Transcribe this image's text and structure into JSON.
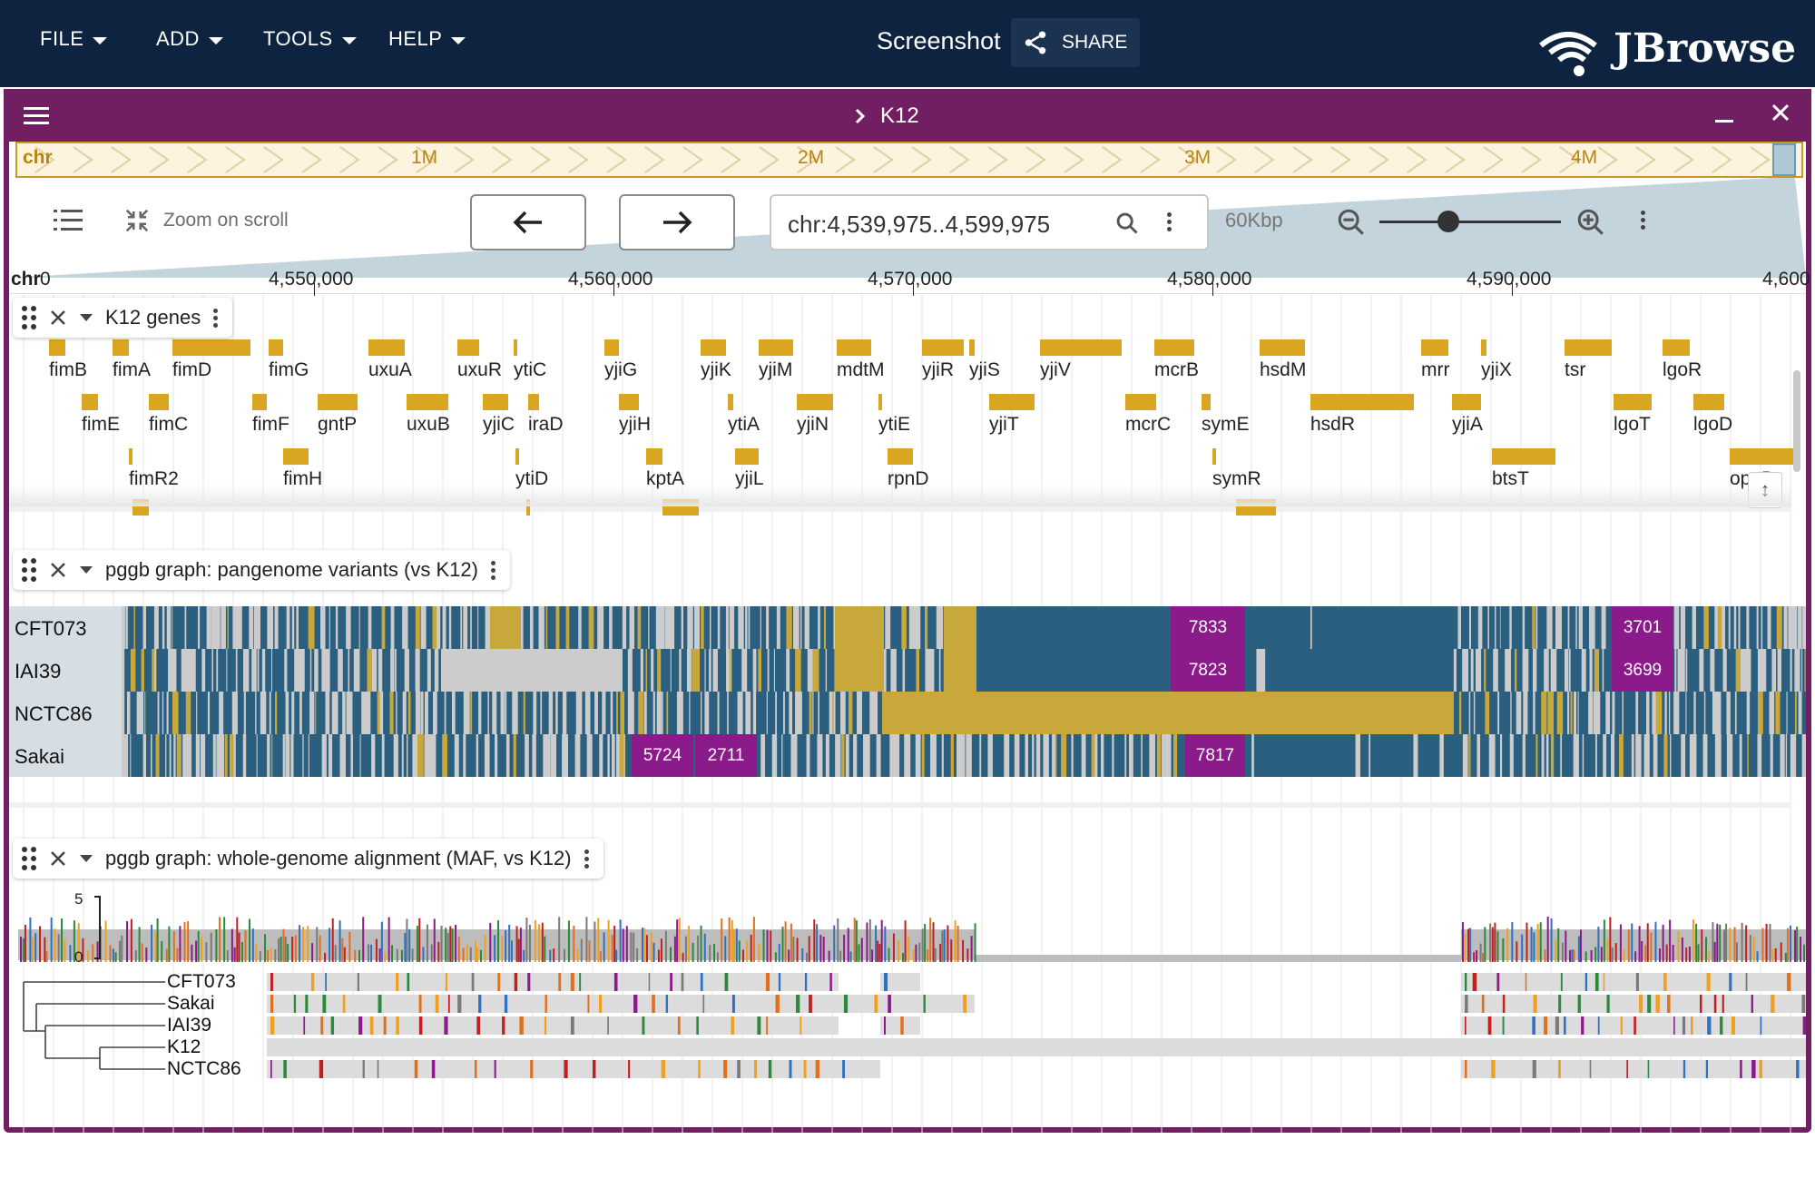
{
  "appbar": {
    "menus": [
      "FILE",
      "ADD",
      "TOOLS",
      "HELP"
    ],
    "session_name": "Screenshot",
    "share_label": "SHARE",
    "logo_text": "JBrowse"
  },
  "view": {
    "title": "K12",
    "overview": {
      "chr_label": "chr",
      "ticks": [
        "1M",
        "2M",
        "3M",
        "4M"
      ]
    },
    "controls": {
      "zoom_on_scroll": "Zoom on scroll",
      "location": "chr:4,539,975..4,599,975",
      "bp_span": "60Kbp",
      "zoom_level": 0.38
    },
    "ruler": {
      "ref_name": "chr",
      "start_label": "0",
      "ticks": [
        "4,550,000",
        "4,560,000",
        "4,570,000",
        "4,580,000",
        "4,590,000",
        "4,600"
      ]
    }
  },
  "tracks": {
    "genes": {
      "title": "K12 genes",
      "features": [
        {
          "name": "fimB",
          "row": 0
        },
        {
          "name": "fimA",
          "row": 0
        },
        {
          "name": "fimD",
          "row": 0
        },
        {
          "name": "fimG",
          "row": 0
        },
        {
          "name": "uxuA",
          "row": 0
        },
        {
          "name": "uxuR",
          "row": 0
        },
        {
          "name": "ytiC",
          "row": 0
        },
        {
          "name": "yjiG",
          "row": 0
        },
        {
          "name": "yjiK",
          "row": 0
        },
        {
          "name": "yjiM",
          "row": 0
        },
        {
          "name": "mdtM",
          "row": 0
        },
        {
          "name": "yjiR",
          "row": 0
        },
        {
          "name": "yjiS",
          "row": 0
        },
        {
          "name": "yjiV",
          "row": 0
        },
        {
          "name": "mcrB",
          "row": 0
        },
        {
          "name": "hsdM",
          "row": 0
        },
        {
          "name": "mrr",
          "row": 0
        },
        {
          "name": "yjiX",
          "row": 0
        },
        {
          "name": "tsr",
          "row": 0
        },
        {
          "name": "lgoR",
          "row": 0
        },
        {
          "name": "fimE",
          "row": 1
        },
        {
          "name": "fimC",
          "row": 1
        },
        {
          "name": "fimF",
          "row": 1
        },
        {
          "name": "gntP",
          "row": 1
        },
        {
          "name": "uxuB",
          "row": 1
        },
        {
          "name": "yjiC",
          "row": 1
        },
        {
          "name": "iraD",
          "row": 1
        },
        {
          "name": "yjiH",
          "row": 1
        },
        {
          "name": "ytiA",
          "row": 1
        },
        {
          "name": "yjiN",
          "row": 1
        },
        {
          "name": "ytiE",
          "row": 1
        },
        {
          "name": "yjiT",
          "row": 1
        },
        {
          "name": "mcrC",
          "row": 1
        },
        {
          "name": "symE",
          "row": 1
        },
        {
          "name": "hsdR",
          "row": 1
        },
        {
          "name": "yjiA",
          "row": 1
        },
        {
          "name": "lgoT",
          "row": 1
        },
        {
          "name": "lgoD",
          "row": 1
        },
        {
          "name": "fimR2",
          "row": 2
        },
        {
          "name": "fimH",
          "row": 2
        },
        {
          "name": "ytiD",
          "row": 2
        },
        {
          "name": "kptA",
          "row": 2
        },
        {
          "name": "yjiL",
          "row": 2
        },
        {
          "name": "rpnD",
          "row": 2
        },
        {
          "name": "symR",
          "row": 2
        },
        {
          "name": "btsT",
          "row": 2
        },
        {
          "name": "opgB",
          "row": 2
        }
      ]
    },
    "variants": {
      "title": "pggb graph: pangenome variants (vs K12)",
      "samples": [
        "CFT073",
        "IAI39",
        "NCTC86",
        "Sakai"
      ],
      "boxes": [
        {
          "sample": "CFT073",
          "label": "7833"
        },
        {
          "sample": "CFT073",
          "label": "3701"
        },
        {
          "sample": "IAI39",
          "label": "7823"
        },
        {
          "sample": "IAI39",
          "label": "3699"
        },
        {
          "sample": "Sakai",
          "label": "5724"
        },
        {
          "sample": "Sakai",
          "label": "2711"
        },
        {
          "sample": "Sakai",
          "label": "7817"
        }
      ],
      "colors": {
        "ref": "#2a5f80",
        "alt": "#c8a83a",
        "nocall": "#cccccc",
        "large": "#8b1a8b"
      }
    },
    "maf": {
      "title": "pggb graph: whole-genome alignment (MAF, vs K12)",
      "axis_max": "5",
      "axis_min": "0",
      "rows": [
        "CFT073",
        "Sakai",
        "IAI39",
        "K12",
        "NCTC86"
      ]
    }
  }
}
